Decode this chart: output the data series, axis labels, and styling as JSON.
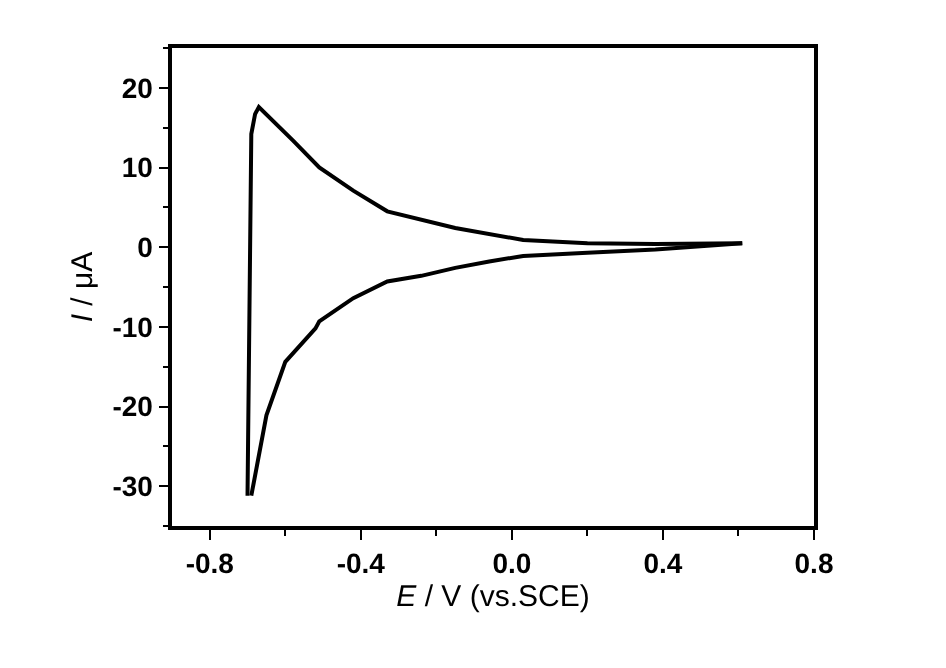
{
  "chart_data": {
    "type": "line",
    "xlabel": "E / V (vs.SCE)",
    "ylabel": "I / μA",
    "xlim": [
      -0.9,
      0.8
    ],
    "xticks": [
      {
        "value": -0.8,
        "label": "-0.8"
      },
      {
        "value": -0.4,
        "label": "-0.4"
      },
      {
        "value": 0,
        "label": "0.0"
      },
      {
        "value": 0.4,
        "label": "0.4"
      },
      {
        "value": 0.8,
        "label": "0.8"
      }
    ],
    "ylim": [
      -35,
      25
    ],
    "yticks": [
      -30,
      -20,
      -10,
      0,
      10,
      20
    ],
    "marker": "none",
    "line_style": "solid",
    "series": [
      {
        "color": "#000000",
        "x": [
          0.61,
          0.38,
          0.2,
          0.03,
          -0.06,
          -0.15,
          -0.24,
          -0.33,
          -0.42,
          -0.51,
          -0.52,
          -0.6,
          -0.65,
          -0.69
        ],
        "values": [
          0.5,
          -0.3,
          -0.7,
          -1.1,
          -1.8,
          -2.6,
          -3.6,
          -4.3,
          -6.4,
          -9.3,
          -10.2,
          -14.4,
          -21.1,
          -31.2
        ]
      },
      {
        "color": "#000000",
        "x": [
          -0.7,
          -0.69,
          -0.68,
          -0.67,
          -0.58,
          -0.51,
          -0.42,
          -0.33,
          -0.15,
          0.03,
          0.2,
          0.38,
          0.61
        ],
        "values": [
          -31.2,
          14.2,
          16.7,
          17.6,
          13.4,
          10.0,
          7.1,
          4.5,
          2.4,
          0.9,
          0.5,
          0.4,
          0.5
        ]
      }
    ]
  }
}
